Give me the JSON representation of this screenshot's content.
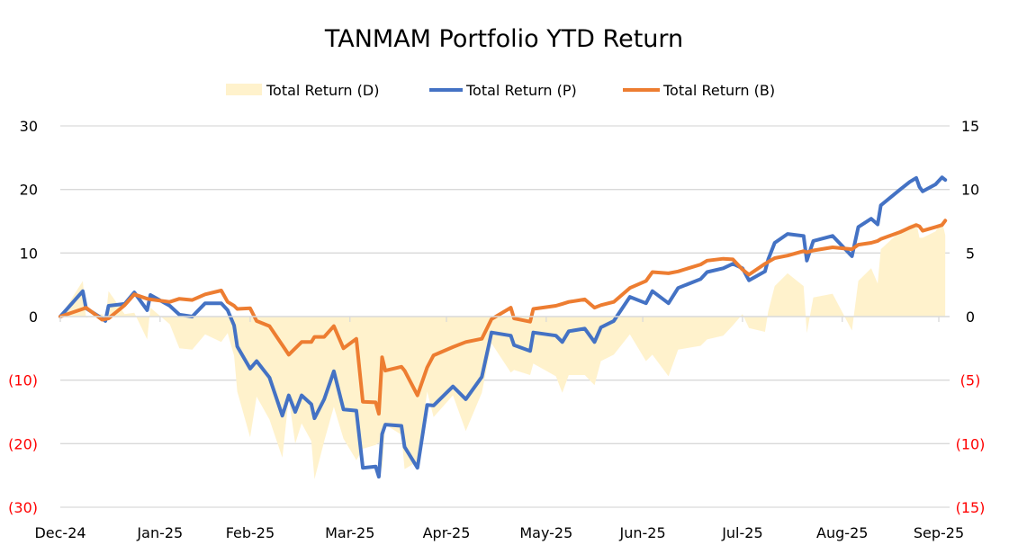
{
  "chart_data": {
    "type": "line",
    "title": "TANMAM Portfolio YTD Return",
    "legend_position": "top",
    "grid": true,
    "x_ticks": [
      "Dec-24",
      "Jan-25",
      "Feb-25",
      "Mar-25",
      "Apr-25",
      "May-25",
      "Jun-25",
      "Jul-25",
      "Aug-25",
      "Sep-25"
    ],
    "x_tick_dates": [
      "2024-12-31",
      "2025-01-31",
      "2025-02-28",
      "2025-03-31",
      "2025-04-30",
      "2025-05-31",
      "2025-06-30",
      "2025-07-31",
      "2025-08-31",
      "2025-09-30"
    ],
    "y_left": {
      "range": [
        -30,
        30
      ],
      "ticks": [
        "(30)",
        "(20)",
        "(10)",
        "0",
        "10",
        "20",
        "30"
      ],
      "tick_values": [
        -30,
        -20,
        -10,
        0,
        10,
        20,
        30
      ]
    },
    "y_right": {
      "range": [
        -15,
        15
      ],
      "ticks": [
        "(15)",
        "(10)",
        "(5)",
        "0",
        "5",
        "10",
        "15"
      ],
      "tick_values": [
        -15,
        -10,
        -5,
        0,
        5,
        10,
        15
      ]
    },
    "negative_tick_color": "#FF0000",
    "x": [
      "2024-12-31",
      "2025-01-07",
      "2025-01-08",
      "2025-01-13",
      "2025-01-14",
      "2025-01-15",
      "2025-01-20",
      "2025-01-23",
      "2025-01-27",
      "2025-01-28",
      "2025-02-03",
      "2025-02-06",
      "2025-02-10",
      "2025-02-14",
      "2025-02-19",
      "2025-02-21",
      "2025-02-23",
      "2025-02-24",
      "2025-02-28",
      "2025-03-02",
      "2025-03-06",
      "2025-03-10",
      "2025-03-12",
      "2025-03-14",
      "2025-03-16",
      "2025-03-19",
      "2025-03-20",
      "2025-03-23",
      "2025-03-26",
      "2025-03-29",
      "2025-04-02",
      "2025-04-04",
      "2025-04-08",
      "2025-04-09",
      "2025-04-10",
      "2025-04-11",
      "2025-04-16",
      "2025-04-17",
      "2025-04-21",
      "2025-04-24",
      "2025-04-26",
      "2025-05-02",
      "2025-05-06",
      "2025-05-11",
      "2025-05-14",
      "2025-05-20",
      "2025-05-21",
      "2025-05-26",
      "2025-05-27",
      "2025-06-03",
      "2025-06-05",
      "2025-06-07",
      "2025-06-12",
      "2025-06-15",
      "2025-06-17",
      "2025-06-21",
      "2025-06-26",
      "2025-07-01",
      "2025-07-03",
      "2025-07-08",
      "2025-07-11",
      "2025-07-18",
      "2025-07-20",
      "2025-07-25",
      "2025-07-28",
      "2025-07-31",
      "2025-08-02",
      "2025-08-07",
      "2025-08-08",
      "2025-08-10",
      "2025-08-14",
      "2025-08-19",
      "2025-08-20",
      "2025-08-22",
      "2025-08-28",
      "2025-09-03",
      "2025-09-05",
      "2025-09-09",
      "2025-09-11",
      "2025-09-12",
      "2025-09-18",
      "2025-09-21",
      "2025-09-23",
      "2025-09-24",
      "2025-09-25",
      "2025-09-29",
      "2025-10-01",
      "2025-10-02"
    ],
    "series": [
      {
        "name": "Total Return (D)",
        "type": "area",
        "axis": "right",
        "color": "#FFF2CC",
        "values": [
          0,
          2.8,
          -0.1,
          0.2,
          -0.3,
          2.0,
          0.2,
          0.3,
          -1.8,
          0.7,
          -0.6,
          -2.5,
          -2.6,
          -1.4,
          -2.0,
          -1.3,
          -3.1,
          -5.9,
          -9.5,
          -6.3,
          -8.1,
          -11.1,
          -6.4,
          -10,
          -8.4,
          -9.8,
          -12.8,
          -9.8,
          -7.1,
          -9.6,
          -11.3,
          -10.4,
          -10.1,
          -9.9,
          -12.1,
          -8.5,
          -9.3,
          -12,
          -11.4,
          -5.9,
          -7.9,
          -6.2,
          -9,
          -6,
          -2.1,
          -4.4,
          -4.2,
          -4.6,
          -3.7,
          -4.7,
          -6,
          -4.6,
          -4.6,
          -5.4,
          -3.5,
          -3.0,
          -1.4,
          -3.5,
          -3,
          -4.7,
          -2.6,
          -2.3,
          -1.8,
          -1.5,
          -0.7,
          0.2,
          -0.9,
          -1.2,
          0.4,
          2.4,
          3.4,
          2.4,
          -1.3,
          1.5,
          1.8,
          -1.1,
          2.8,
          3.8,
          2.6,
          5.3,
          6.7,
          7.2,
          7.4,
          6.2,
          6.2,
          6.7,
          7.5,
          6.4
        ]
      },
      {
        "name": "Total Return (P)",
        "type": "line",
        "axis": "left",
        "color": "#4472C4",
        "values": [
          0,
          4,
          1.3,
          -0.3,
          -0.7,
          1.7,
          2,
          3.8,
          1,
          3.4,
          1.7,
          0.3,
          0,
          2.1,
          2.1,
          1,
          -1.4,
          -4.7,
          -8.2,
          -7,
          -9.6,
          -15.6,
          -12.4,
          -15,
          -12.4,
          -13.8,
          -16,
          -13,
          -8.6,
          -14.6,
          -14.8,
          -23.8,
          -23.6,
          -25.2,
          -18.5,
          -17,
          -17.2,
          -20.5,
          -23.8,
          -13.9,
          -14,
          -11,
          -13,
          -9.5,
          -2.5,
          -3,
          -4.5,
          -5.4,
          -2.5,
          -3,
          -4,
          -2.3,
          -1.9,
          -4,
          -1.7,
          -0.7,
          3.1,
          2.1,
          4,
          2.1,
          4.5,
          5.9,
          7,
          7.6,
          8.3,
          7.6,
          5.7,
          7.1,
          9,
          11.6,
          13,
          12.7,
          8.8,
          11.9,
          12.7,
          9.5,
          14.1,
          15.4,
          14.5,
          17.5,
          20,
          21.2,
          21.8,
          20.4,
          19.7,
          20.8,
          21.9,
          21.5
        ]
      },
      {
        "name": "Total Return (B)",
        "type": "line",
        "axis": "left",
        "color": "#ED7D31",
        "values": [
          0,
          1.2,
          1.4,
          -0.5,
          -0.4,
          -0.3,
          1.8,
          3.5,
          2.8,
          2.7,
          2.3,
          2.8,
          2.6,
          3.5,
          4.1,
          2.3,
          1.7,
          1.2,
          1.3,
          -0.7,
          -1.5,
          -4.5,
          -6,
          -5,
          -4,
          -4,
          -3.2,
          -3.2,
          -1.5,
          -5,
          -3.5,
          -13.4,
          -13.5,
          -15.3,
          -6.4,
          -8.5,
          -7.9,
          -8.5,
          -12.4,
          -8,
          -6.1,
          -4.8,
          -4,
          -3.5,
          -0.4,
          1.4,
          -0.3,
          -0.8,
          1.2,
          1.7,
          2,
          2.3,
          2.7,
          1.4,
          1.8,
          2.3,
          4.5,
          5.6,
          7,
          6.8,
          7.1,
          8.2,
          8.8,
          9.1,
          9,
          7.4,
          6.6,
          8.3,
          8.6,
          9.2,
          9.6,
          10.3,
          10.1,
          10.4,
          10.9,
          10.6,
          11.3,
          11.6,
          11.9,
          12.2,
          13.3,
          14,
          14.4,
          14.2,
          13.5,
          14.1,
          14.4,
          15.1
        ]
      }
    ]
  }
}
